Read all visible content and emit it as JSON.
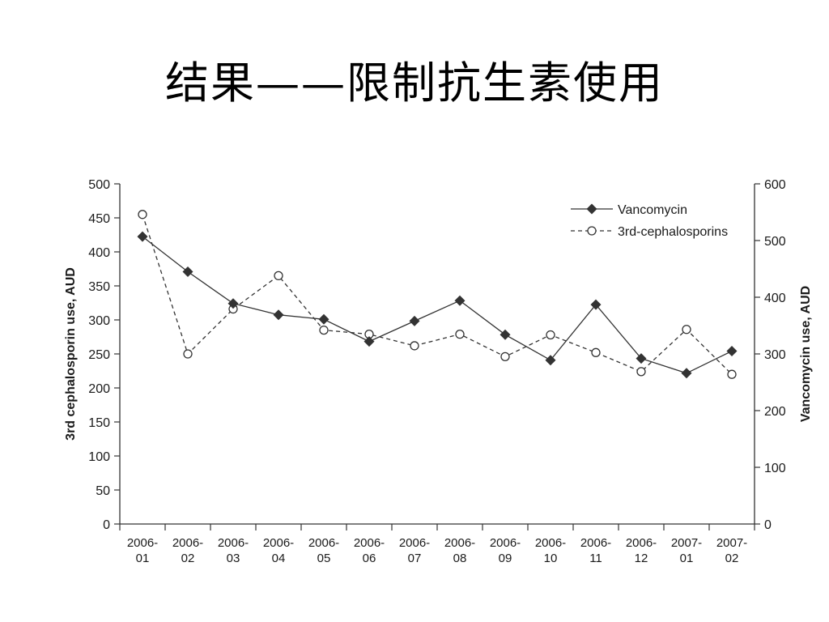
{
  "slide": {
    "title": "结果——限制抗生素使用"
  },
  "chart_data": {
    "type": "line",
    "categories": [
      "2006-01",
      "2006-02",
      "2006-03",
      "2006-04",
      "2006-05",
      "2006-06",
      "2006-07",
      "2006-08",
      "2006-09",
      "2006-10",
      "2006-11",
      "2006-12",
      "2007-01",
      "2007-02"
    ],
    "category_labels": [
      [
        "2006-",
        "01"
      ],
      [
        "2006-",
        "02"
      ],
      [
        "2006-",
        "03"
      ],
      [
        "2006-",
        "04"
      ],
      [
        "2006-",
        "05"
      ],
      [
        "2006-",
        "06"
      ],
      [
        "2006-",
        "07"
      ],
      [
        "2006-",
        "08"
      ],
      [
        "2006-",
        "09"
      ],
      [
        "2006-",
        "10"
      ],
      [
        "2006-",
        "11"
      ],
      [
        "2006-",
        "12"
      ],
      [
        "2007-",
        "01"
      ],
      [
        "2007-",
        "02"
      ]
    ],
    "series": [
      {
        "name": "Vancomycin",
        "axis": "right",
        "marker": "filled-diamond",
        "line_style": "solid",
        "values": [
          507,
          445,
          389,
          369,
          361,
          322,
          358,
          394,
          334,
          289,
          387,
          292,
          266,
          305
        ]
      },
      {
        "name": "3rd-cephalosporins",
        "axis": "left",
        "marker": "open-circle",
        "line_style": "dashed",
        "values": [
          455,
          250,
          316,
          365,
          285,
          279,
          262,
          279,
          246,
          278,
          252,
          224,
          286,
          220
        ]
      }
    ],
    "ylabel_left": "3rd cephalosporin use, AUD",
    "ylabel_right": "Vancomycin use, AUD",
    "ylim_left": [
      0,
      500
    ],
    "ylim_right": [
      0,
      600
    ],
    "yticks_left": [
      0,
      50,
      100,
      150,
      200,
      250,
      300,
      350,
      400,
      450,
      500
    ],
    "yticks_right": [
      0,
      100,
      200,
      300,
      400,
      500,
      600
    ],
    "grid": false,
    "legend": "top-right",
    "colors": {
      "line": "#333333",
      "text": "#1a1a1a"
    }
  }
}
